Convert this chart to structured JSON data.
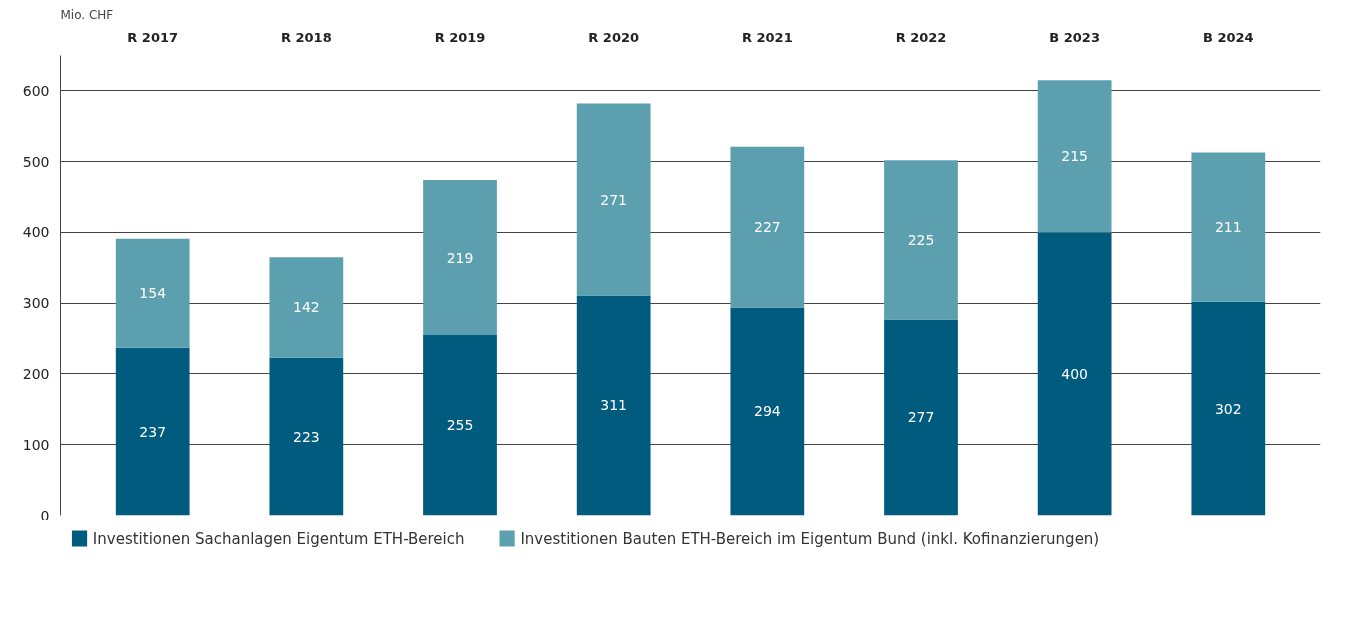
{
  "chart_data": {
    "type": "bar",
    "ylabel": "Mio. CHF",
    "categories": [
      "R 2017",
      "R 2018",
      "R 2019",
      "R 2020",
      "R 2021",
      "R 2022",
      "B 2023",
      "B 2024"
    ],
    "stacked": true,
    "series": [
      {
        "name": "Investitionen Sachanlagen Eigentum ETH-Bereich",
        "color": "#005b7f",
        "values": [
          237,
          223,
          255,
          311,
          294,
          277,
          400,
          302
        ]
      },
      {
        "name": "Investitionen Bauten ETH-Bereich im Eigentum Bund (inkl. Kofinanzierungen)",
        "color": "#5ca0b0",
        "values": [
          154,
          142,
          219,
          271,
          227,
          225,
          215,
          211
        ]
      }
    ],
    "ylim": [
      0,
      650
    ],
    "yticks": [
      0,
      100,
      200,
      300,
      400,
      500,
      600
    ],
    "grid": "y",
    "legend": "bottom",
    "data_labels": true
  }
}
